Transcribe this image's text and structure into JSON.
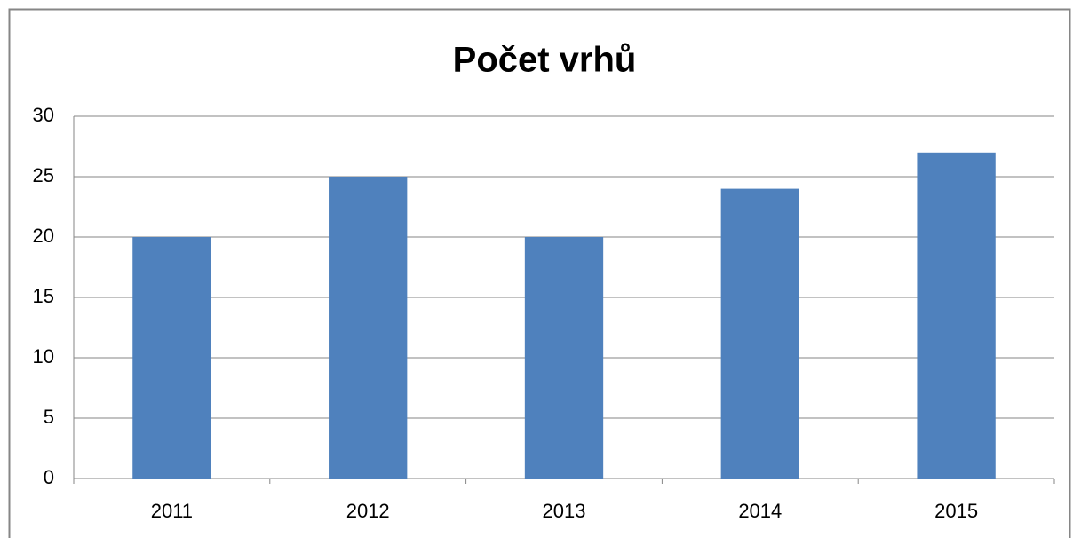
{
  "chart_data": {
    "type": "bar",
    "title": "Počet vrhů",
    "categories": [
      "2011",
      "2012",
      "2013",
      "2014",
      "2015"
    ],
    "values": [
      20,
      25,
      20,
      24,
      27
    ],
    "color": "#4f81bd",
    "ylim": [
      0,
      30
    ],
    "yticks": [
      0,
      5,
      10,
      15,
      20,
      25,
      30
    ],
    "grid": true
  }
}
